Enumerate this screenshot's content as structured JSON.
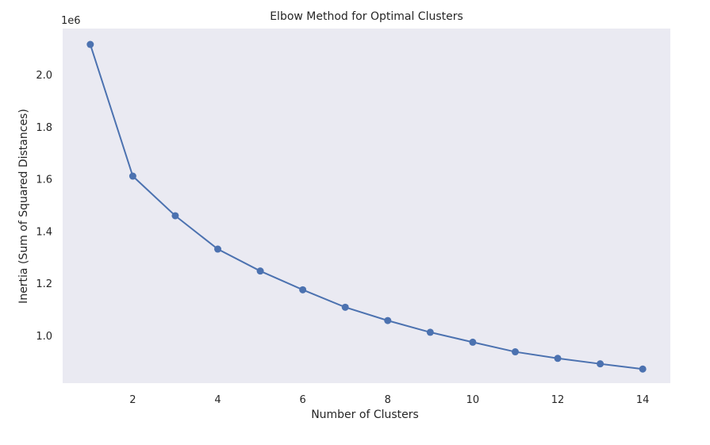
{
  "chart_data": {
    "type": "line",
    "title": "Elbow Method for Optimal Clusters",
    "xlabel": "Number of Clusters",
    "ylabel": "Inertia (Sum of Squared Distances)",
    "y_offset_text": "1e6",
    "x": [
      1,
      2,
      3,
      4,
      5,
      6,
      7,
      8,
      9,
      10,
      11,
      12,
      13,
      14
    ],
    "series": [
      {
        "values": [
          2119000,
          1614000,
          1462000,
          1334000,
          1250000,
          1178000,
          1111000,
          1060000,
          1015000,
          977000,
          940000,
          915000,
          894000,
          874000
        ],
        "color": "#4c72b0",
        "marker": "circle"
      }
    ],
    "xlim": [
      0.35,
      14.65
    ],
    "ylim": [
      820000,
      2180000
    ],
    "x_ticks": [
      2,
      4,
      6,
      8,
      10,
      12,
      14
    ],
    "x_tick_labels": [
      "2",
      "4",
      "6",
      "8",
      "10",
      "12",
      "14"
    ],
    "y_ticks": [
      1000000,
      1200000,
      1400000,
      1600000,
      1800000,
      2000000
    ],
    "y_tick_labels": [
      "1.0",
      "1.2",
      "1.4",
      "1.6",
      "1.8",
      "2.0"
    ],
    "grid": false,
    "plot_background": "#eaeaf2"
  }
}
